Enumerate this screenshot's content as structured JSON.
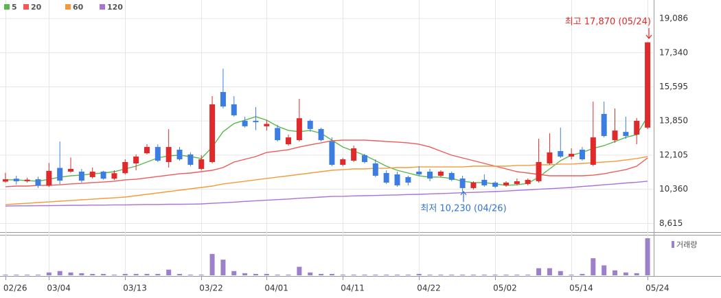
{
  "chart_data": {
    "type": "candlestick",
    "categories": [
      "02/26",
      null,
      null,
      null,
      "03/04",
      null,
      null,
      null,
      null,
      null,
      null,
      "03/13",
      null,
      null,
      null,
      null,
      null,
      null,
      "03/22",
      null,
      null,
      null,
      null,
      null,
      "04/01",
      null,
      null,
      null,
      null,
      null,
      null,
      "04/11",
      null,
      null,
      null,
      null,
      null,
      null,
      "04/22",
      null,
      null,
      null,
      null,
      null,
      null,
      "05/02",
      null,
      null,
      null,
      null,
      null,
      null,
      "05/14",
      null,
      null,
      null,
      null,
      null,
      null,
      "05/24"
    ],
    "open": [
      10750,
      10900,
      10770,
      10870,
      10540,
      11450,
      11260,
      11260,
      10980,
      11260,
      10900,
      11180,
      11680,
      12200,
      12520,
      11750,
      12380,
      12140,
      11400,
      11750,
      15330,
      14700,
      13860,
      13860,
      13580,
      13490,
      12660,
      12870,
      13860,
      13440,
      12800,
      11610,
      11820,
      12100,
      11680,
      11190,
      11120,
      10980,
      11260,
      11260,
      11050,
      11190,
      10910,
      10420,
      10840,
      10700,
      10560,
      10630,
      10630,
      10770,
      11680,
      12310,
      12030,
      12380,
      11610,
      14210,
      12870,
      13290,
      13150,
      13510
    ],
    "high": [
      11200,
      11050,
      10950,
      11000,
      11700,
      12800,
      11980,
      11400,
      11470,
      11300,
      11330,
      11890,
      12140,
      12660,
      12660,
      13430,
      12520,
      12240,
      12100,
      15120,
      16520,
      15120,
      14070,
      14560,
      13910,
      13650,
      13150,
      14980,
      13930,
      13510,
      13010,
      11960,
      12590,
      12170,
      11890,
      11330,
      11260,
      11050,
      11540,
      11400,
      11330,
      11260,
      11050,
      10770,
      11120,
      10770,
      10770,
      10910,
      10910,
      12940,
      13220,
      13510,
      12450,
      12520,
      14840,
      14840,
      14490,
      14070,
      14000,
      17870
    ],
    "low": [
      10700,
      10600,
      10700,
      10430,
      10480,
      10620,
      11200,
      10700,
      10910,
      10850,
      10830,
      11120,
      11330,
      12140,
      11750,
      11470,
      11820,
      11540,
      11330,
      11680,
      14490,
      14070,
      13510,
      13380,
      13360,
      12800,
      12590,
      12800,
      13300,
      12800,
      11540,
      11540,
      11750,
      11680,
      10980,
      10630,
      10490,
      10560,
      11050,
      10770,
      10980,
      10770,
      10230,
      10350,
      10490,
      10420,
      10490,
      10560,
      10560,
      10700,
      11610,
      11960,
      11890,
      11820,
      11540,
      13010,
      12730,
      12940,
      12660,
      13440
    ],
    "close": [
      10870,
      10770,
      10850,
      10540,
      11300,
      10800,
      11400,
      10800,
      11260,
      10900,
      11180,
      11750,
      12030,
      12520,
      11820,
      12520,
      11890,
      11610,
      11890,
      14700,
      14590,
      14140,
      13580,
      13790,
      13700,
      12870,
      13010,
      13990,
      13440,
      12870,
      11610,
      11890,
      12450,
      11750,
      11050,
      10700,
      10560,
      10700,
      11120,
      10910,
      11260,
      10840,
      10420,
      10700,
      10560,
      10490,
      10700,
      10770,
      10840,
      11750,
      12240,
      12030,
      12170,
      11890,
      13010,
      13080,
      13360,
      13080,
      13860,
      17870
    ],
    "up_color": "#e0292a",
    "down_color": "#3b7de0",
    "series": [
      {
        "name": "5",
        "color": "#58b94a",
        "values": [
          10840,
          10840,
          10800,
          10770,
          10870,
          10980,
          11050,
          11080,
          11150,
          11190,
          11260,
          11400,
          11540,
          11750,
          11960,
          12070,
          12100,
          12030,
          11930,
          12520,
          13300,
          13720,
          13890,
          14070,
          13890,
          13580,
          13370,
          13300,
          13370,
          13220,
          12870,
          12520,
          12310,
          12100,
          11820,
          11540,
          11330,
          11190,
          11050,
          10980,
          10980,
          10910,
          10770,
          10700,
          10700,
          10630,
          10560,
          10590,
          10660,
          10980,
          11400,
          11820,
          12100,
          12240,
          12450,
          12590,
          12800,
          13010,
          13150,
          14070
        ]
      },
      {
        "name": "20",
        "color": "#ee5a56",
        "values": [
          10490,
          10520,
          10520,
          10560,
          10560,
          10590,
          10630,
          10660,
          10700,
          10730,
          10770,
          10840,
          10870,
          10940,
          11010,
          11080,
          11150,
          11190,
          11260,
          11330,
          11470,
          11750,
          11890,
          12030,
          12240,
          12310,
          12380,
          12520,
          12630,
          12730,
          12840,
          12870,
          12870,
          12870,
          12840,
          12800,
          12770,
          12730,
          12660,
          12520,
          12310,
          12100,
          11960,
          11820,
          11680,
          11540,
          11400,
          11260,
          11190,
          11120,
          11050,
          11050,
          11050,
          11050,
          11080,
          11150,
          11260,
          11360,
          11540,
          11960
        ]
      },
      {
        "name": "60",
        "color": "#f59a3a",
        "values": [
          9570,
          9610,
          9640,
          9680,
          9710,
          9750,
          9780,
          9820,
          9850,
          9890,
          9920,
          9960,
          10030,
          10100,
          10170,
          10240,
          10310,
          10380,
          10450,
          10520,
          10630,
          10700,
          10770,
          10840,
          10910,
          10980,
          11050,
          11120,
          11190,
          11260,
          11330,
          11360,
          11400,
          11400,
          11430,
          11430,
          11470,
          11470,
          11500,
          11500,
          11500,
          11500,
          11500,
          11540,
          11540,
          11540,
          11540,
          11580,
          11580,
          11610,
          11610,
          11650,
          11650,
          11680,
          11720,
          11750,
          11790,
          11860,
          11930,
          12030
        ]
      },
      {
        "name": "120",
        "color": "#a872d6",
        "values": [
          9500,
          9510,
          9510,
          9520,
          9520,
          9530,
          9540,
          9540,
          9550,
          9550,
          9560,
          9560,
          9570,
          9580,
          9580,
          9590,
          9590,
          9600,
          9610,
          9640,
          9670,
          9700,
          9740,
          9770,
          9800,
          9830,
          9860,
          9900,
          9930,
          9960,
          9990,
          10000,
          10020,
          10030,
          10040,
          10060,
          10070,
          10090,
          10100,
          10120,
          10140,
          10160,
          10180,
          10200,
          10220,
          10240,
          10270,
          10300,
          10330,
          10360,
          10390,
          10420,
          10450,
          10500,
          10540,
          10590,
          10630,
          10680,
          10720,
          10770
        ]
      }
    ],
    "volume": {
      "name": "거래량",
      "color": "#9c80cc",
      "values": [
        10000,
        10000,
        10000,
        10000,
        40000,
        60000,
        40000,
        30000,
        20000,
        20000,
        10000,
        20000,
        20000,
        20000,
        20000,
        80000,
        20000,
        10000,
        10000,
        300000,
        220000,
        60000,
        30000,
        20000,
        20000,
        10000,
        10000,
        120000,
        40000,
        20000,
        20000,
        10000,
        10000,
        10000,
        10000,
        10000,
        10000,
        10000,
        20000,
        10000,
        10000,
        10000,
        10000,
        10000,
        10000,
        10000,
        10000,
        10000,
        10000,
        100000,
        100000,
        60000,
        10000,
        20000,
        240000,
        140000,
        70000,
        40000,
        30000,
        520000
      ]
    },
    "ylim": [
      8170,
      20034
    ],
    "yticks": [
      {
        "value": 19086,
        "label": "19,086"
      },
      {
        "value": 17340,
        "label": "17,340"
      },
      {
        "value": 15595,
        "label": "15,595"
      },
      {
        "value": 13850,
        "label": "13,850"
      },
      {
        "value": 12105,
        "label": "12,105"
      },
      {
        "value": 10360,
        "label": "10,360"
      },
      {
        "value": 8615,
        "label": "8,615"
      }
    ],
    "annotations": {
      "high": "최고 17,870 (05/24)",
      "low": "최저 10,230 (04/26)"
    }
  }
}
